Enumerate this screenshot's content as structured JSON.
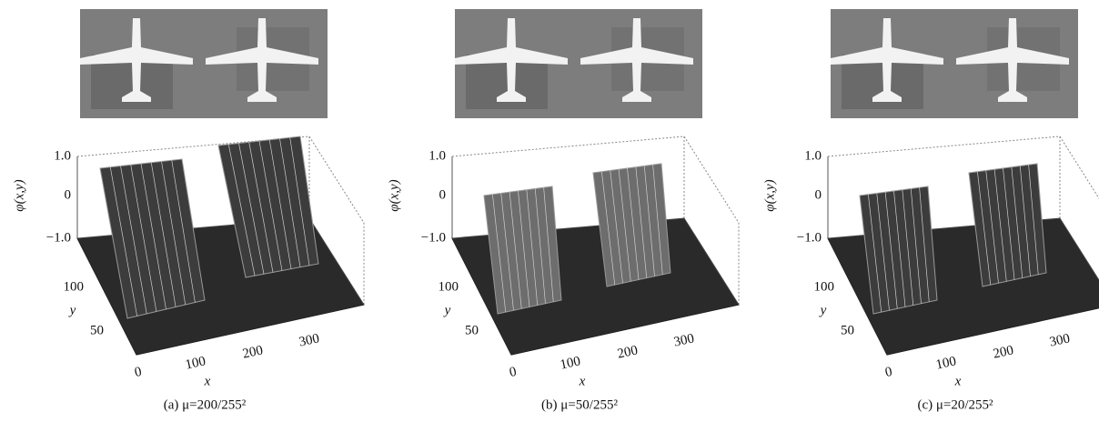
{
  "figure": {
    "panels": [
      {
        "caption": "(a) μ=200/255²",
        "z_ticks": [
          "1.0",
          "0",
          "−1.0"
        ],
        "z_label": "φ(x,y)",
        "y_ticks": [
          "100",
          "50"
        ],
        "y_label": "y",
        "x_ticks": [
          "0",
          "100",
          "200",
          "300"
        ],
        "x_label": "x"
      },
      {
        "caption": "(b) μ=50/255²",
        "z_ticks": [
          "1.0",
          "0",
          "−1.0"
        ],
        "z_label": "φ(x,y)",
        "y_ticks": [
          "100",
          "50"
        ],
        "y_label": "y",
        "x_ticks": [
          "0",
          "100",
          "200",
          "300"
        ],
        "x_label": "x"
      },
      {
        "caption": "(c) μ=20/255²",
        "z_ticks": [
          "1.0",
          "0",
          "−1.0"
        ],
        "z_label": "φ(x,y)",
        "y_ticks": [
          "100",
          "50"
        ],
        "y_label": "y",
        "x_ticks": [
          "0",
          "100",
          "200",
          "300"
        ],
        "x_label": "x"
      }
    ]
  }
}
